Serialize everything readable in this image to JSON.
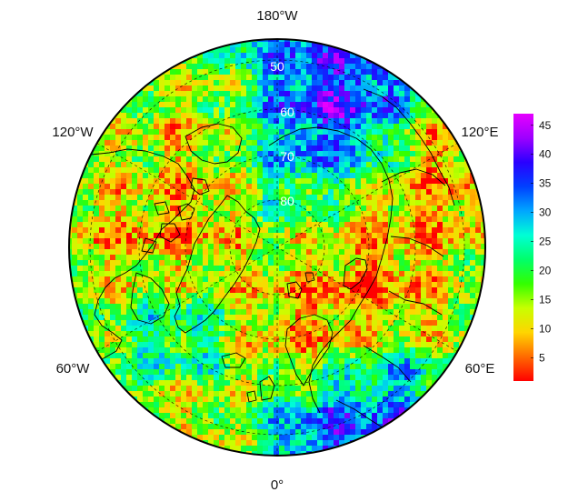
{
  "map": {
    "projection": "north-polar-stereographic",
    "center": "North Pole",
    "longitude_labels": {
      "top": "180°W",
      "upper_left": "120°W",
      "upper_right": "120°E",
      "lower_left": "60°W",
      "lower_right": "60°E",
      "bottom": "0°"
    },
    "latitude_labels": [
      "50",
      "60",
      "70",
      "80"
    ],
    "field_description_colors": {
      "low": "#ff1a00",
      "mid": "#2ee000",
      "high": "#a000ff"
    }
  },
  "colorbar": {
    "min": 1,
    "max": 47,
    "ticks": [
      "5",
      "10",
      "15",
      "20",
      "25",
      "30",
      "35",
      "40",
      "45"
    ],
    "tick_values": [
      5,
      10,
      15,
      20,
      25,
      30,
      35,
      40,
      45
    ],
    "palette": [
      "#ff0000",
      "#ff6a00",
      "#ffd500",
      "#c8ff00",
      "#33ff00",
      "#00ff6a",
      "#00ffd5",
      "#00a6ff",
      "#0040ff",
      "#2a00ff",
      "#9d00ff",
      "#e600ff"
    ]
  }
}
